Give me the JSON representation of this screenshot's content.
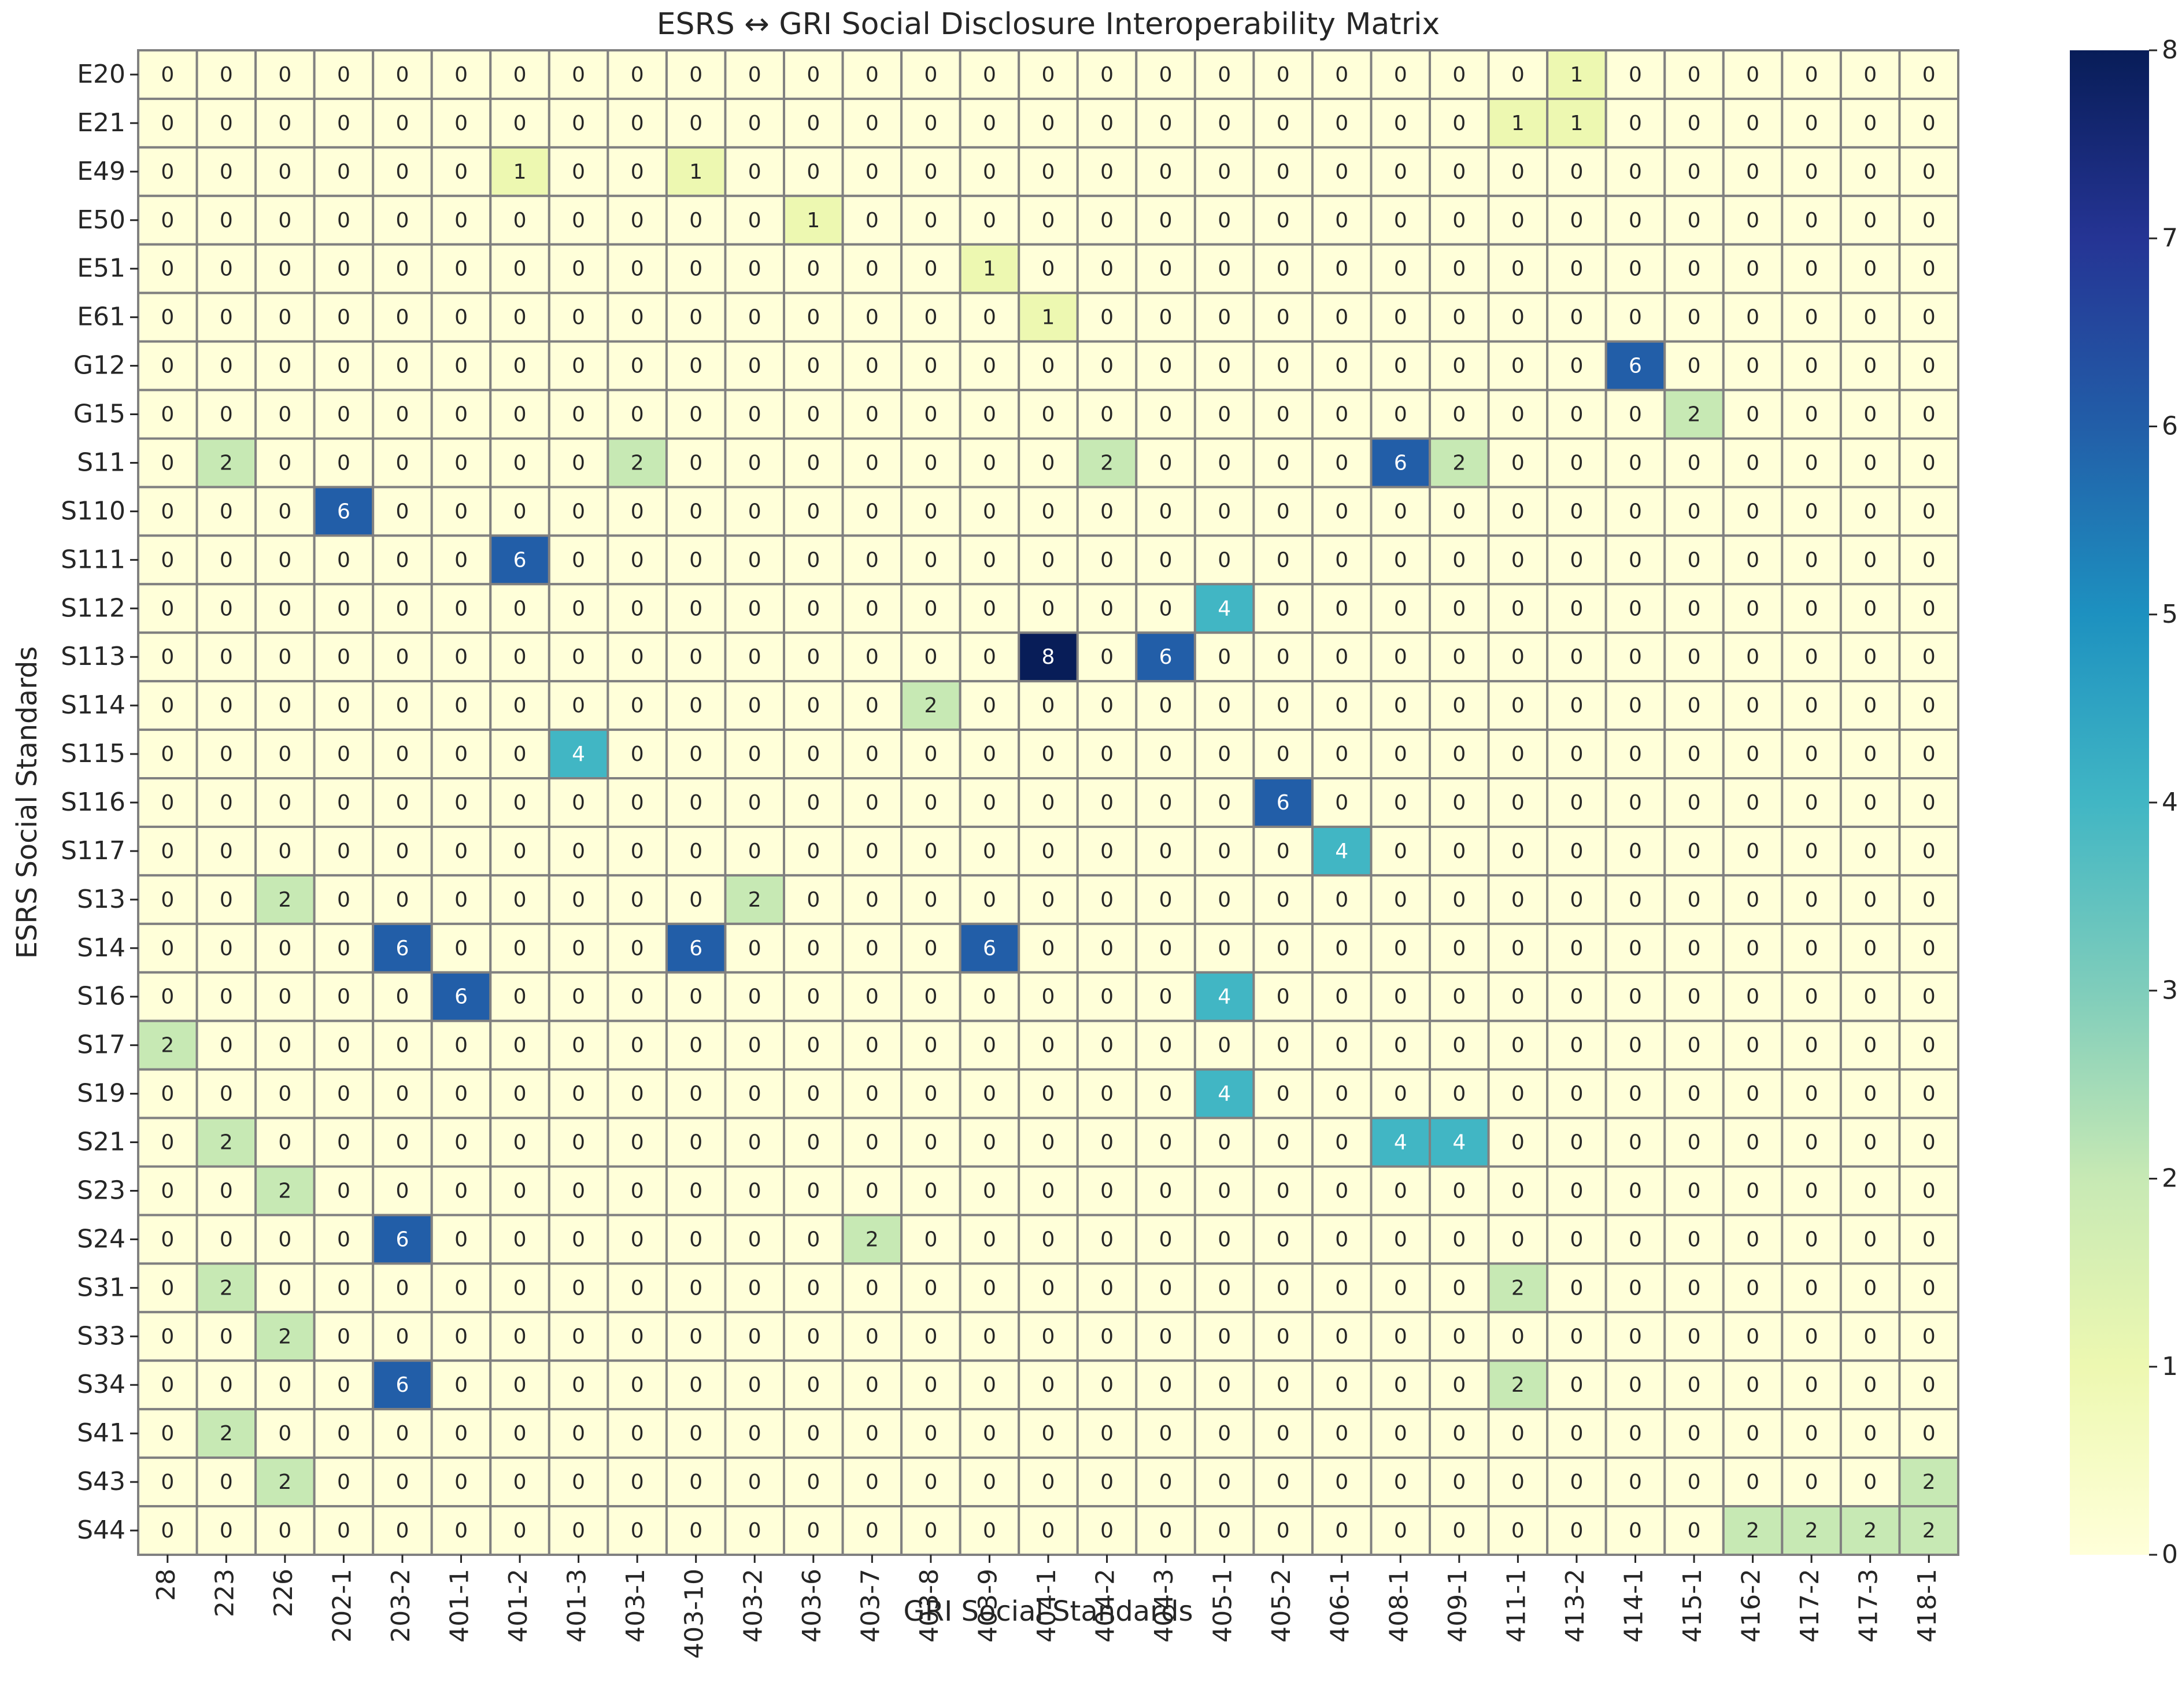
{
  "chart_data": {
    "type": "heatmap",
    "title": "ESRS ↔ GRI Social Disclosure Interoperability Matrix",
    "xlabel": "GRI Social Standards",
    "ylabel": "ESRS Social Standards",
    "x_categories": [
      "28",
      "223",
      "226",
      "202-1",
      "203-2",
      "401-1",
      "401-2",
      "401-3",
      "403-1",
      "403-10",
      "403-2",
      "403-6",
      "403-7",
      "403-8",
      "403-9",
      "404-1",
      "404-2",
      "404-3",
      "405-1",
      "405-2",
      "406-1",
      "408-1",
      "409-1",
      "411-1",
      "413-2",
      "414-1",
      "415-1",
      "416-2",
      "417-2",
      "417-3",
      "418-1"
    ],
    "y_categories": [
      "E20",
      "E21",
      "E49",
      "E50",
      "E51",
      "E61",
      "G12",
      "G15",
      "S11",
      "S110",
      "S111",
      "S112",
      "S113",
      "S114",
      "S115",
      "S116",
      "S117",
      "S13",
      "S14",
      "S16",
      "S17",
      "S19",
      "S21",
      "S23",
      "S24",
      "S31",
      "S33",
      "S34",
      "S41",
      "S43",
      "S44"
    ],
    "values": [
      [
        0,
        0,
        0,
        0,
        0,
        0,
        0,
        0,
        0,
        0,
        0,
        0,
        0,
        0,
        0,
        0,
        0,
        0,
        0,
        0,
        0,
        0,
        0,
        0,
        1,
        0,
        0,
        0,
        0,
        0,
        0
      ],
      [
        0,
        0,
        0,
        0,
        0,
        0,
        0,
        0,
        0,
        0,
        0,
        0,
        0,
        0,
        0,
        0,
        0,
        0,
        0,
        0,
        0,
        0,
        0,
        1,
        1,
        0,
        0,
        0,
        0,
        0,
        0
      ],
      [
        0,
        0,
        0,
        0,
        0,
        0,
        1,
        0,
        0,
        1,
        0,
        0,
        0,
        0,
        0,
        0,
        0,
        0,
        0,
        0,
        0,
        0,
        0,
        0,
        0,
        0,
        0,
        0,
        0,
        0,
        0
      ],
      [
        0,
        0,
        0,
        0,
        0,
        0,
        0,
        0,
        0,
        0,
        0,
        1,
        0,
        0,
        0,
        0,
        0,
        0,
        0,
        0,
        0,
        0,
        0,
        0,
        0,
        0,
        0,
        0,
        0,
        0,
        0
      ],
      [
        0,
        0,
        0,
        0,
        0,
        0,
        0,
        0,
        0,
        0,
        0,
        0,
        0,
        0,
        1,
        0,
        0,
        0,
        0,
        0,
        0,
        0,
        0,
        0,
        0,
        0,
        0,
        0,
        0,
        0,
        0
      ],
      [
        0,
        0,
        0,
        0,
        0,
        0,
        0,
        0,
        0,
        0,
        0,
        0,
        0,
        0,
        0,
        1,
        0,
        0,
        0,
        0,
        0,
        0,
        0,
        0,
        0,
        0,
        0,
        0,
        0,
        0,
        0
      ],
      [
        0,
        0,
        0,
        0,
        0,
        0,
        0,
        0,
        0,
        0,
        0,
        0,
        0,
        0,
        0,
        0,
        0,
        0,
        0,
        0,
        0,
        0,
        0,
        0,
        0,
        6,
        0,
        0,
        0,
        0,
        0
      ],
      [
        0,
        0,
        0,
        0,
        0,
        0,
        0,
        0,
        0,
        0,
        0,
        0,
        0,
        0,
        0,
        0,
        0,
        0,
        0,
        0,
        0,
        0,
        0,
        0,
        0,
        0,
        2,
        0,
        0,
        0,
        0
      ],
      [
        0,
        2,
        0,
        0,
        0,
        0,
        0,
        0,
        2,
        0,
        0,
        0,
        0,
        0,
        0,
        0,
        2,
        0,
        0,
        0,
        0,
        6,
        2,
        0,
        0,
        0,
        0,
        0,
        0,
        0,
        0
      ],
      [
        0,
        0,
        0,
        6,
        0,
        0,
        0,
        0,
        0,
        0,
        0,
        0,
        0,
        0,
        0,
        0,
        0,
        0,
        0,
        0,
        0,
        0,
        0,
        0,
        0,
        0,
        0,
        0,
        0,
        0,
        0
      ],
      [
        0,
        0,
        0,
        0,
        0,
        0,
        6,
        0,
        0,
        0,
        0,
        0,
        0,
        0,
        0,
        0,
        0,
        0,
        0,
        0,
        0,
        0,
        0,
        0,
        0,
        0,
        0,
        0,
        0,
        0,
        0
      ],
      [
        0,
        0,
        0,
        0,
        0,
        0,
        0,
        0,
        0,
        0,
        0,
        0,
        0,
        0,
        0,
        0,
        0,
        0,
        4,
        0,
        0,
        0,
        0,
        0,
        0,
        0,
        0,
        0,
        0,
        0,
        0
      ],
      [
        0,
        0,
        0,
        0,
        0,
        0,
        0,
        0,
        0,
        0,
        0,
        0,
        0,
        0,
        0,
        8,
        0,
        6,
        0,
        0,
        0,
        0,
        0,
        0,
        0,
        0,
        0,
        0,
        0,
        0,
        0
      ],
      [
        0,
        0,
        0,
        0,
        0,
        0,
        0,
        0,
        0,
        0,
        0,
        0,
        0,
        2,
        0,
        0,
        0,
        0,
        0,
        0,
        0,
        0,
        0,
        0,
        0,
        0,
        0,
        0,
        0,
        0,
        0
      ],
      [
        0,
        0,
        0,
        0,
        0,
        0,
        0,
        4,
        0,
        0,
        0,
        0,
        0,
        0,
        0,
        0,
        0,
        0,
        0,
        0,
        0,
        0,
        0,
        0,
        0,
        0,
        0,
        0,
        0,
        0,
        0
      ],
      [
        0,
        0,
        0,
        0,
        0,
        0,
        0,
        0,
        0,
        0,
        0,
        0,
        0,
        0,
        0,
        0,
        0,
        0,
        0,
        6,
        0,
        0,
        0,
        0,
        0,
        0,
        0,
        0,
        0,
        0,
        0
      ],
      [
        0,
        0,
        0,
        0,
        0,
        0,
        0,
        0,
        0,
        0,
        0,
        0,
        0,
        0,
        0,
        0,
        0,
        0,
        0,
        0,
        4,
        0,
        0,
        0,
        0,
        0,
        0,
        0,
        0,
        0,
        0
      ],
      [
        0,
        0,
        2,
        0,
        0,
        0,
        0,
        0,
        0,
        0,
        2,
        0,
        0,
        0,
        0,
        0,
        0,
        0,
        0,
        0,
        0,
        0,
        0,
        0,
        0,
        0,
        0,
        0,
        0,
        0,
        0
      ],
      [
        0,
        0,
        0,
        0,
        6,
        0,
        0,
        0,
        0,
        6,
        0,
        0,
        0,
        0,
        6,
        0,
        0,
        0,
        0,
        0,
        0,
        0,
        0,
        0,
        0,
        0,
        0,
        0,
        0,
        0,
        0
      ],
      [
        0,
        0,
        0,
        0,
        0,
        6,
        0,
        0,
        0,
        0,
        0,
        0,
        0,
        0,
        0,
        0,
        0,
        0,
        4,
        0,
        0,
        0,
        0,
        0,
        0,
        0,
        0,
        0,
        0,
        0,
        0
      ],
      [
        2,
        0,
        0,
        0,
        0,
        0,
        0,
        0,
        0,
        0,
        0,
        0,
        0,
        0,
        0,
        0,
        0,
        0,
        0,
        0,
        0,
        0,
        0,
        0,
        0,
        0,
        0,
        0,
        0,
        0,
        0
      ],
      [
        0,
        0,
        0,
        0,
        0,
        0,
        0,
        0,
        0,
        0,
        0,
        0,
        0,
        0,
        0,
        0,
        0,
        0,
        4,
        0,
        0,
        0,
        0,
        0,
        0,
        0,
        0,
        0,
        0,
        0,
        0
      ],
      [
        0,
        2,
        0,
        0,
        0,
        0,
        0,
        0,
        0,
        0,
        0,
        0,
        0,
        0,
        0,
        0,
        0,
        0,
        0,
        0,
        0,
        4,
        4,
        0,
        0,
        0,
        0,
        0,
        0,
        0,
        0
      ],
      [
        0,
        0,
        2,
        0,
        0,
        0,
        0,
        0,
        0,
        0,
        0,
        0,
        0,
        0,
        0,
        0,
        0,
        0,
        0,
        0,
        0,
        0,
        0,
        0,
        0,
        0,
        0,
        0,
        0,
        0,
        0
      ],
      [
        0,
        0,
        0,
        0,
        6,
        0,
        0,
        0,
        0,
        0,
        0,
        0,
        2,
        0,
        0,
        0,
        0,
        0,
        0,
        0,
        0,
        0,
        0,
        0,
        0,
        0,
        0,
        0,
        0,
        0,
        0
      ],
      [
        0,
        2,
        0,
        0,
        0,
        0,
        0,
        0,
        0,
        0,
        0,
        0,
        0,
        0,
        0,
        0,
        0,
        0,
        0,
        0,
        0,
        0,
        0,
        2,
        0,
        0,
        0,
        0,
        0,
        0,
        0
      ],
      [
        0,
        0,
        2,
        0,
        0,
        0,
        0,
        0,
        0,
        0,
        0,
        0,
        0,
        0,
        0,
        0,
        0,
        0,
        0,
        0,
        0,
        0,
        0,
        0,
        0,
        0,
        0,
        0,
        0,
        0,
        0
      ],
      [
        0,
        0,
        0,
        0,
        6,
        0,
        0,
        0,
        0,
        0,
        0,
        0,
        0,
        0,
        0,
        0,
        0,
        0,
        0,
        0,
        0,
        0,
        0,
        2,
        0,
        0,
        0,
        0,
        0,
        0,
        0
      ],
      [
        0,
        2,
        0,
        0,
        0,
        0,
        0,
        0,
        0,
        0,
        0,
        0,
        0,
        0,
        0,
        0,
        0,
        0,
        0,
        0,
        0,
        0,
        0,
        0,
        0,
        0,
        0,
        0,
        0,
        0,
        0
      ],
      [
        0,
        0,
        2,
        0,
        0,
        0,
        0,
        0,
        0,
        0,
        0,
        0,
        0,
        0,
        0,
        0,
        0,
        0,
        0,
        0,
        0,
        0,
        0,
        0,
        0,
        0,
        0,
        0,
        0,
        0,
        2
      ],
      [
        0,
        0,
        0,
        0,
        0,
        0,
        0,
        0,
        0,
        0,
        0,
        0,
        0,
        0,
        0,
        0,
        0,
        0,
        0,
        0,
        0,
        0,
        0,
        0,
        0,
        0,
        0,
        2,
        2,
        2,
        2
      ]
    ],
    "colorbar": {
      "min": 0,
      "max": 8,
      "ticks": [
        0,
        1,
        2,
        3,
        4,
        5,
        6,
        7,
        8
      ]
    },
    "colormap": [
      "#ffffd9",
      "#edf8b1",
      "#c7e9b4",
      "#7fcdbb",
      "#41b6c4",
      "#1d91c0",
      "#225ea8",
      "#253494",
      "#081d58"
    ],
    "cell_border_color": "#808080",
    "annotations": true,
    "grid": false,
    "legend": "colorbar-right"
  }
}
